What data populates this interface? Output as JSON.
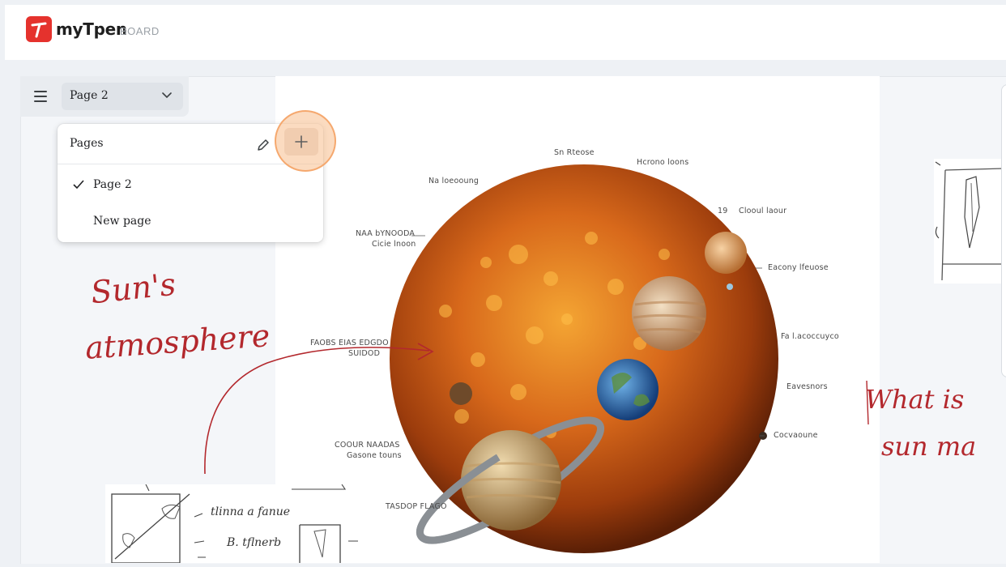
{
  "app": {
    "name": "myTpen",
    "product": "BOARD",
    "accent": "#e5322d"
  },
  "toolbar": {
    "current_page": "Page 2"
  },
  "pages_menu": {
    "title": "Pages",
    "items": [
      {
        "label": "Page 2",
        "selected": true
      },
      {
        "label": "New page",
        "selected": false
      }
    ]
  },
  "illustration": {
    "labels": [
      "Sn Rteose",
      "Hcrono loons",
      "Na loeooung",
      "Clooul laour",
      "NAA bYNOODA",
      "Cicie lnoon",
      "Eacony lfeuose",
      "FAOBS EIAS EDGDO",
      "SUIDOD",
      "Fa l.acoccuyco",
      "Eavesnors",
      "Cocvaoune",
      "COOUR NAADAS",
      "Gasone touns",
      "TASDOP FLAGO",
      "19"
    ]
  },
  "annotations": {
    "left": [
      "Sun's",
      "atmosphere"
    ],
    "right": [
      "What is",
      "sun ma"
    ],
    "bottom_sketch": [
      "tlinna a fanue",
      "B. tflnerb"
    ],
    "ink_color": "#b3282d"
  }
}
